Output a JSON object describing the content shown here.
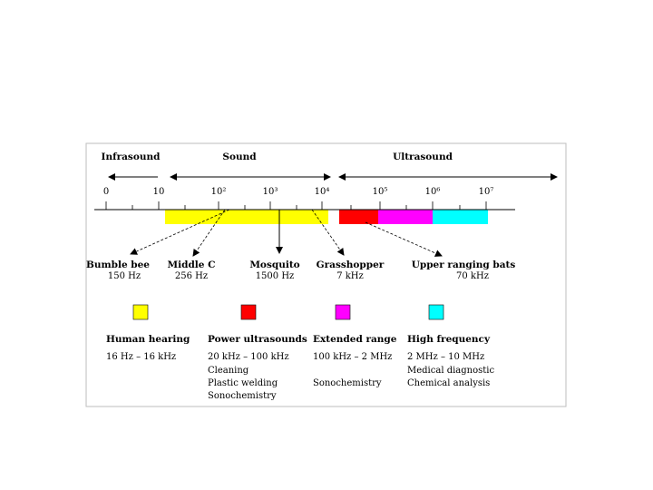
{
  "regions": [
    {
      "label": "Infrasound"
    },
    {
      "label": "Sound"
    },
    {
      "label": "Ultrasound"
    }
  ],
  "scale_ticks": [
    "0",
    "10",
    "10²",
    "10³",
    "10⁴",
    "10⁵",
    "10⁶",
    "10⁷"
  ],
  "examples": [
    {
      "name": "Bumble bee",
      "freq": "150 Hz"
    },
    {
      "name": "Middle C",
      "freq": "256 Hz"
    },
    {
      "name": "Mosquito",
      "freq": "1500 Hz"
    },
    {
      "name": "Grasshopper",
      "freq": "7 kHz"
    },
    {
      "name": "Upper ranging bats",
      "freq": "70 kHz"
    }
  ],
  "legend": [
    {
      "title": "Human hearing",
      "color": "#ffff00",
      "range": "16 Hz – 16 kHz",
      "uses": []
    },
    {
      "title": "Power ultrasounds",
      "color": "#ff0000",
      "range": "20 kHz – 100 kHz",
      "uses": [
        "Cleaning",
        "Plastic welding",
        "Sonochemistry"
      ]
    },
    {
      "title": "Extended range",
      "color": "#ff00ff",
      "range": "100 kHz – 2 MHz",
      "uses": [
        "",
        "Sonochemistry"
      ]
    },
    {
      "title": "High frequency",
      "color": "#00ffff",
      "range": "2 MHz – 10 MHz",
      "uses": [
        "Medical diagnostic",
        "Chemical analysis"
      ]
    }
  ]
}
